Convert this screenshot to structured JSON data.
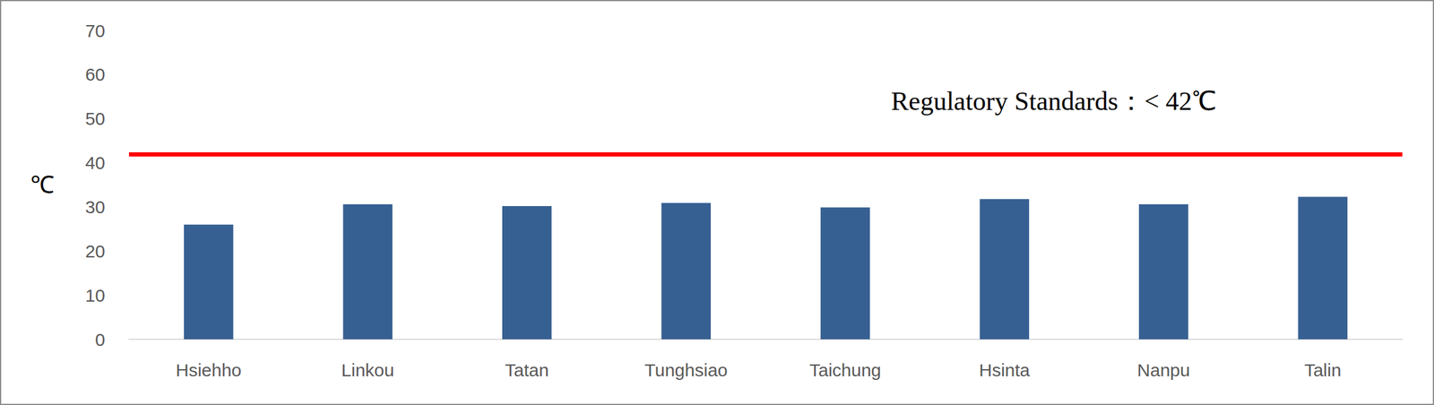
{
  "chart_data": {
    "type": "bar",
    "categories": [
      "Hsiehho",
      "Linkou",
      "Tatan",
      "Tunghsiao",
      "Taichung",
      "Hsinta",
      "Nanpu",
      "Talin"
    ],
    "values": [
      26,
      30.6,
      30.2,
      30.9,
      29.9,
      31.8,
      30.6,
      32.3
    ],
    "color": "#376092",
    "y_label": "℃",
    "ylim": [
      0,
      70
    ],
    "yticks": [
      0,
      10,
      20,
      30,
      40,
      50,
      60,
      70
    ],
    "grid": false,
    "reference_line": {
      "value": 42,
      "label": "Regulatory Standards：< 42℃",
      "color": "#ff0000"
    }
  }
}
